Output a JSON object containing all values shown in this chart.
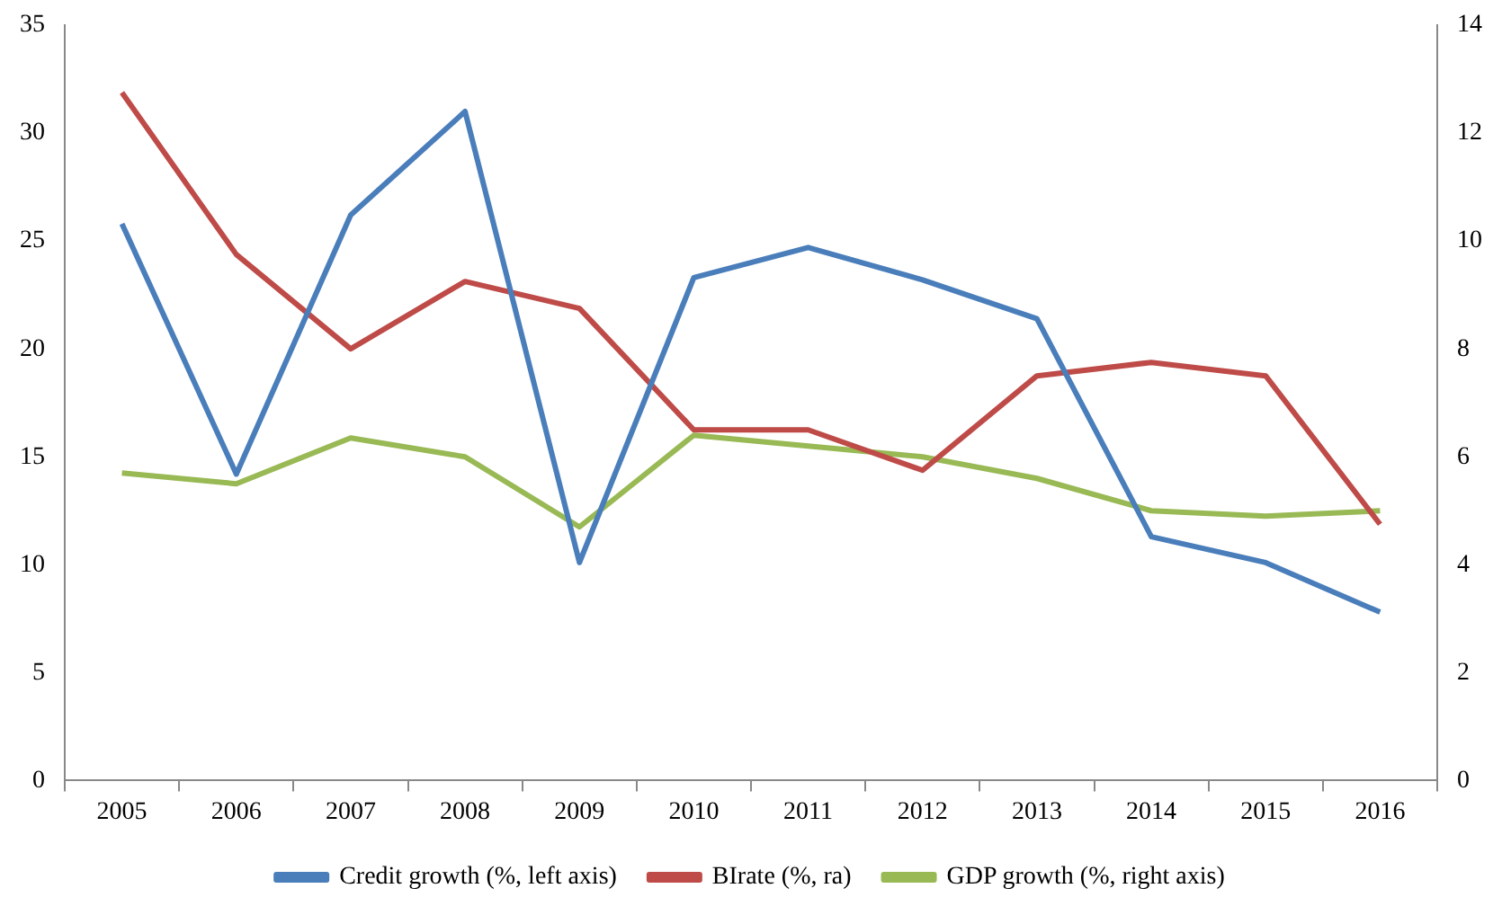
{
  "chart_data": {
    "type": "line",
    "categories": [
      "2005",
      "2006",
      "2007",
      "2008",
      "2009",
      "2010",
      "2011",
      "2012",
      "2013",
      "2014",
      "2015",
      "2016"
    ],
    "series": [
      {
        "name": "Credit growth (%, left axis)",
        "color": "#4a7ebb",
        "values": [
          25.8,
          14.2,
          26.2,
          31.0,
          10.1,
          23.3,
          24.7,
          23.2,
          21.4,
          11.3,
          10.1,
          7.8
        ]
      },
      {
        "name": "BIrate (%, ra)",
        "color": "#be4b48",
        "axis": "y2",
        "values": [
          12.75,
          9.75,
          8.0,
          9.25,
          8.75,
          6.5,
          6.5,
          5.75,
          7.5,
          7.75,
          7.5,
          4.75
        ]
      },
      {
        "name": "GDP growth (%, right axis)",
        "color": "#98b954",
        "axis": "y2",
        "values": [
          5.7,
          5.5,
          6.35,
          6.0,
          4.7,
          6.4,
          6.2,
          6.0,
          5.6,
          5.0,
          4.9,
          5.0
        ]
      }
    ],
    "ylim": [
      0,
      35
    ],
    "yticks": [
      0,
      5,
      10,
      15,
      20,
      25,
      30,
      35
    ],
    "y2lim": [
      0,
      14
    ],
    "y2ticks": [
      0,
      2,
      4,
      6,
      8,
      10,
      12,
      14
    ],
    "grid": false,
    "legend": "bottom",
    "marker": "none",
    "line_style": "solid"
  }
}
